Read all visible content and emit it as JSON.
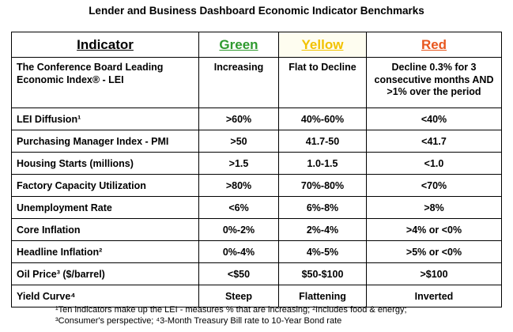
{
  "title": "Lender and Business Dashboard Economic Indicator Benchmarks",
  "headers": {
    "indicator": "Indicator",
    "green": "Green",
    "yellow": "Yellow",
    "red": "Red"
  },
  "colors": {
    "green": "#2e9a2e",
    "yellow": "#f2c200",
    "red": "#e8571e"
  },
  "rows": [
    {
      "indicator": "The Conference Board Leading Economic Index® - LEI",
      "green": "Increasing",
      "yellow": "Flat to Decline",
      "red": "Decline 0.3% for 3 consecutive months AND >1% over the period"
    },
    {
      "indicator": "LEI Diffusion¹",
      "green": ">60%",
      "yellow": "40%-60%",
      "red": "<40%"
    },
    {
      "indicator": "Purchasing Manager Index - PMI",
      "green": ">50",
      "yellow": "41.7-50",
      "red": "<41.7"
    },
    {
      "indicator": "Housing Starts (millions)",
      "green": ">1.5",
      "yellow": "1.0-1.5",
      "red": "<1.0"
    },
    {
      "indicator": "Factory Capacity Utilization",
      "green": ">80%",
      "yellow": "70%-80%",
      "red": "<70%"
    },
    {
      "indicator": "Unemployment Rate",
      "green": "<6%",
      "yellow": "6%-8%",
      "red": ">8%"
    },
    {
      "indicator": "Core Inflation",
      "green": "0%-2%",
      "yellow": "2%-4%",
      "red": ">4% or <0%"
    },
    {
      "indicator": "Headline Inflation²",
      "green": "0%-4%",
      "yellow": "4%-5%",
      "red": ">5% or <0%"
    },
    {
      "indicator": "Oil Price³ ($/barrel)",
      "green": "<$50",
      "yellow": "$50-$100",
      "red": ">$100"
    },
    {
      "indicator": "Yield Curve⁴",
      "green": "Steep",
      "yellow": "Flattening",
      "red": "Inverted"
    }
  ],
  "footnotes": {
    "line1": "¹Ten indicators make up the LEI -  measures % that are increasing; ²Includes food & energy;",
    "line2": "³Consumer's perspective; ⁴3-Month Treasury Bill rate to 10-Year Bond rate"
  }
}
